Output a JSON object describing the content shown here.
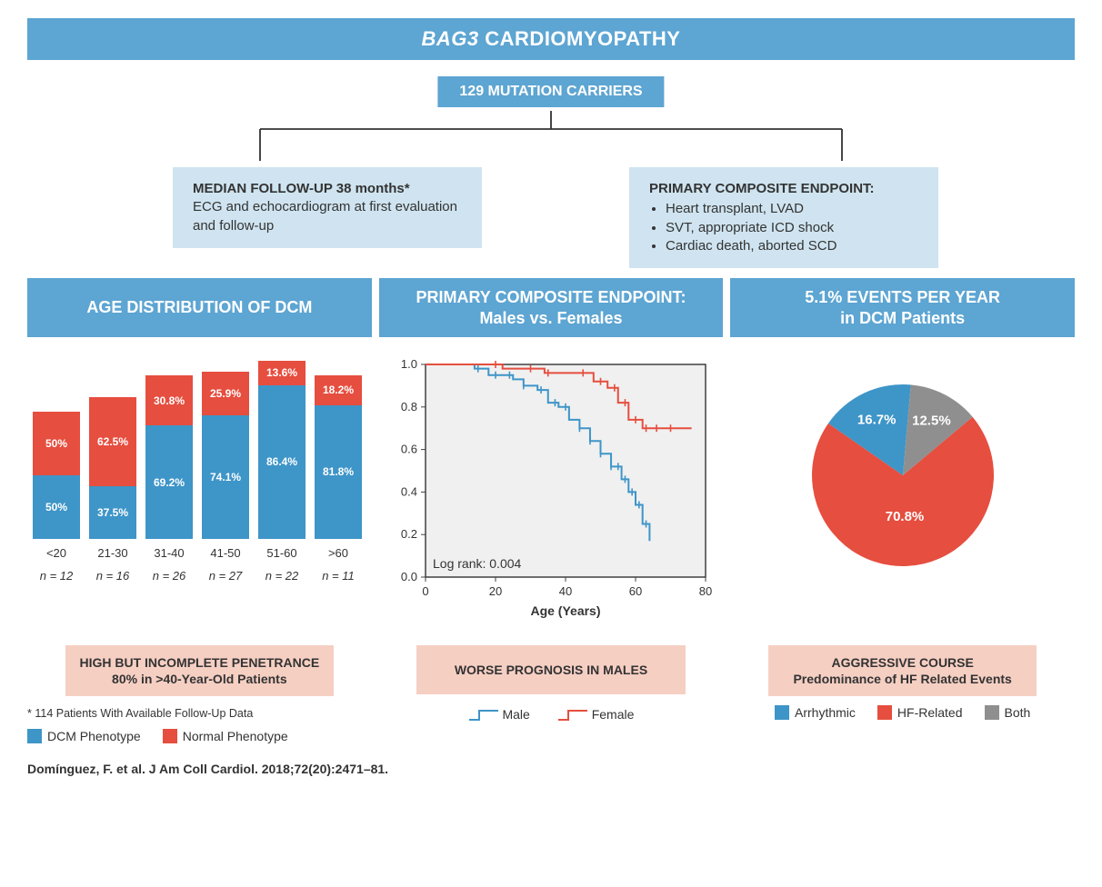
{
  "colors": {
    "header_bg": "#5da5d2",
    "header_text": "#ffffff",
    "info_bg": "#cfe4f0",
    "concl_bg": "#f6cfc3",
    "blue": "#3e95c8",
    "red": "#e64e3f",
    "gray": "#8f8f8f",
    "axis": "#404040",
    "plot_border": "#333333",
    "text": "#333333"
  },
  "title_ital": "BAG3",
  "title_rest": " CARDIOMYOPATHY",
  "mutation_box": "129 MUTATION CARRIERS",
  "followup_box": {
    "header": "MEDIAN FOLLOW-UP 38 months*",
    "body": "ECG and echocardiogram at first evaluation and follow-up"
  },
  "endpoint_box": {
    "header": "PRIMARY COMPOSITE ENDPOINT:",
    "items": [
      "Heart transplant, LVAD",
      "SVT, appropriate ICD shock",
      "Cardiac death, aborted SCD"
    ]
  },
  "col_headers": {
    "c1": "AGE DISTRIBUTION OF DCM",
    "c2_l1": "PRIMARY COMPOSITE ENDPOINT:",
    "c2_l2": "Males vs. Females",
    "c3_l1": "5.1% EVENTS PER YEAR",
    "c3_l2": "in DCM Patients"
  },
  "bar_chart": {
    "type": "stacked-bar-100pct",
    "categories": [
      "<20",
      "21-30",
      "31-40",
      "41-50",
      "51-60",
      ">60"
    ],
    "n_labels": [
      "n = 12",
      "n = 16",
      "n = 26",
      "n = 27",
      "n = 22",
      "n = 11"
    ],
    "dcm_values": [
      50.0,
      37.5,
      69.2,
      74.1,
      86.4,
      81.8
    ],
    "normal_values": [
      50.0,
      62.5,
      30.8,
      25.9,
      13.6,
      18.2
    ],
    "dcm_labels": [
      "50%",
      "37.5%",
      "69.2%",
      "74.1%",
      "86.4%",
      "81.8%"
    ],
    "normal_labels": [
      "50%",
      "62.5%",
      "30.8%",
      "25.9%",
      "13.6%",
      "18.2%"
    ],
    "bar_totals_pct": [
      70,
      78,
      90,
      92,
      98,
      90
    ],
    "dcm_color": "#3e95c8",
    "normal_color": "#e64e3f",
    "label_fontsize": 12,
    "category_fontsize": 13
  },
  "km_chart": {
    "type": "kaplan-meier-step",
    "xlabel": "Age (Years)",
    "xlim": [
      0,
      80
    ],
    "xtick_step": 20,
    "ylim": [
      0.0,
      1.0
    ],
    "ytick_step": 0.2,
    "line_width": 2,
    "logrank_text": "Log rank: 0.004",
    "male_color": "#3e95c8",
    "female_color": "#e64e3f",
    "background": "#f0f0f0",
    "grid_color": "#cccccc",
    "male_points": [
      [
        0,
        1.0
      ],
      [
        10,
        1.0
      ],
      [
        14,
        0.98
      ],
      [
        18,
        0.95
      ],
      [
        22,
        0.95
      ],
      [
        25,
        0.93
      ],
      [
        28,
        0.9
      ],
      [
        32,
        0.88
      ],
      [
        35,
        0.82
      ],
      [
        38,
        0.8
      ],
      [
        41,
        0.74
      ],
      [
        44,
        0.7
      ],
      [
        47,
        0.64
      ],
      [
        50,
        0.58
      ],
      [
        53,
        0.52
      ],
      [
        56,
        0.46
      ],
      [
        58,
        0.4
      ],
      [
        60,
        0.34
      ],
      [
        62,
        0.25
      ],
      [
        64,
        0.17
      ]
    ],
    "female_points": [
      [
        0,
        1.0
      ],
      [
        18,
        1.0
      ],
      [
        22,
        0.98
      ],
      [
        30,
        0.98
      ],
      [
        34,
        0.96
      ],
      [
        44,
        0.96
      ],
      [
        48,
        0.92
      ],
      [
        52,
        0.89
      ],
      [
        55,
        0.82
      ],
      [
        58,
        0.74
      ],
      [
        62,
        0.7
      ],
      [
        70,
        0.7
      ],
      [
        76,
        0.7
      ]
    ],
    "male_ticks": [
      15,
      20,
      24,
      28,
      33,
      37,
      40,
      44,
      47,
      50,
      53,
      55,
      57,
      59,
      61,
      63
    ],
    "female_ticks": [
      20,
      30,
      35,
      45,
      50,
      54,
      57,
      60,
      63,
      66,
      70
    ]
  },
  "pie_chart": {
    "type": "pie",
    "slices": [
      {
        "label": "HF-Related",
        "value": 70.8,
        "color": "#e64e3f",
        "text": "70.8%"
      },
      {
        "label": "Arrhythmic",
        "value": 16.7,
        "color": "#3e95c8",
        "text": "16.7%"
      },
      {
        "label": "Both",
        "value": 12.5,
        "color": "#8f8f8f",
        "text": "12.5%"
      }
    ],
    "start_angle_deg": -40,
    "radius": 100,
    "label_fontsize": 15
  },
  "conclusions": {
    "c1_l1": "HIGH BUT INCOMPLETE PENETRANCE",
    "c1_l2": "80% in >40-Year-Old Patients",
    "c2": "WORSE PROGNOSIS IN MALES",
    "c3_l1": "AGGRESSIVE COURSE",
    "c3_l2": "Predominance of HF Related Events"
  },
  "footnote": "* 114 Patients With Available Follow-Up Data",
  "legend_bar": {
    "dcm": "DCM Phenotype",
    "normal": "Normal Phenotype"
  },
  "legend_km": {
    "male": "Male",
    "female": "Female"
  },
  "legend_pie": {
    "a": "Arrhythmic",
    "b": "HF-Related",
    "c": "Both"
  },
  "citation": "Domínguez, F. et al. J Am Coll Cardiol. 2018;72(20):2471–81."
}
